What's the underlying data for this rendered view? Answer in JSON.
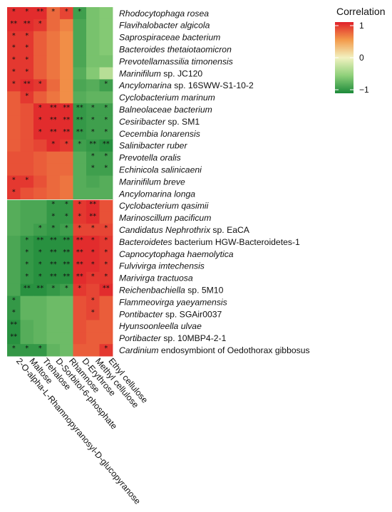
{
  "chart_data": {
    "type": "heatmap",
    "legend_title": "Correlation",
    "legend_ticks": [
      "1",
      "0",
      "−1"
    ],
    "legend_values": [
      1,
      0,
      -1
    ],
    "color_scale": [
      "#1d8a3a",
      "#8fd07a",
      "#f2f2c0",
      "#f39a4a",
      "#e0202a"
    ],
    "rows": [
      {
        "italic": "Rhodocytophaga rosea",
        "rest": ""
      },
      {
        "italic": "Flavihalobacter algicola",
        "rest": ""
      },
      {
        "italic": "Saprospiraceae bacterium",
        "rest": ""
      },
      {
        "italic": "Bacteroides thetaiotaomicron",
        "rest": ""
      },
      {
        "italic": "Prevotellamassilia timonensis",
        "rest": ""
      },
      {
        "italic": "Marinifilum",
        "rest": " sp. JC120"
      },
      {
        "italic": "Ancylomarina",
        "rest": " sp. 16SWW-S1-10-2"
      },
      {
        "italic": "Cyclobacterium marinum",
        "rest": ""
      },
      {
        "italic": "Balneolaceae bacterium",
        "rest": ""
      },
      {
        "italic": "Cesiribacter",
        "rest": " sp. SM1"
      },
      {
        "italic": "Cecembia lonarensis",
        "rest": ""
      },
      {
        "italic": "Salinibacter ruber",
        "rest": ""
      },
      {
        "italic": "Prevotella oralis",
        "rest": ""
      },
      {
        "italic": "Echinicola salinicaeni",
        "rest": ""
      },
      {
        "italic": "Marinifilum breve",
        "rest": ""
      },
      {
        "italic": "Ancylomarina longa",
        "rest": ""
      },
      {
        "italic": "Cyclobacterium qasimii",
        "rest": ""
      },
      {
        "italic": "Marinoscillum pacificum",
        "rest": ""
      },
      {
        "italic": "Candidatus Nephrothrix",
        "rest": " sp. EaCA"
      },
      {
        "italic": "Bacteroidetes",
        "rest": " bacterium HGW-Bacteroidetes-1"
      },
      {
        "italic": "Capnocytophaga haemolytica",
        "rest": ""
      },
      {
        "italic": "Fulvivirga imtechensis",
        "rest": ""
      },
      {
        "italic": "Marivirga tractuosa",
        "rest": ""
      },
      {
        "italic": "Reichenbachiella",
        "rest": " sp. 5M10"
      },
      {
        "italic": "Flammeovirga yaeyamensis",
        "rest": ""
      },
      {
        "italic": "Pontibacter",
        "rest": " sp. SGAir0037"
      },
      {
        "italic": "Hyunsoonleella ulvae",
        "rest": ""
      },
      {
        "italic": "Portibacter",
        "rest": " sp. 10MBP4-2-1"
      },
      {
        "italic": "Cardinium",
        "rest": " endosymbiont of Oedothorax gibbosus"
      }
    ],
    "columns": [
      "2-O-alpha-L-Rhamnopyranosyl-D-glucopyranose",
      "Maltose",
      "Trehalose",
      "D-Sorbitol-6-phosphate",
      "Rhamnose",
      "D-Erythrose",
      "Methyl cellulose",
      "Ethyl cellulose"
    ],
    "values": [
      [
        0.95,
        0.95,
        0.95,
        0.7,
        0.85,
        -0.85,
        -0.6,
        -0.55
      ],
      [
        0.95,
        0.95,
        0.9,
        0.7,
        0.6,
        -0.8,
        -0.6,
        -0.55
      ],
      [
        0.9,
        0.9,
        0.75,
        0.65,
        0.55,
        -0.8,
        -0.6,
        -0.55
      ],
      [
        0.9,
        0.9,
        0.75,
        0.65,
        0.55,
        -0.8,
        -0.6,
        -0.55
      ],
      [
        0.9,
        0.9,
        0.75,
        0.65,
        0.55,
        -0.8,
        -0.6,
        -0.6
      ],
      [
        0.9,
        0.9,
        0.75,
        0.65,
        0.55,
        -0.75,
        -0.55,
        -0.3
      ],
      [
        0.9,
        0.95,
        0.9,
        0.7,
        0.55,
        -0.8,
        -0.75,
        -0.85
      ],
      [
        0.75,
        0.9,
        0.75,
        0.65,
        0.55,
        -0.75,
        -0.7,
        -0.7
      ],
      [
        0.75,
        0.8,
        0.95,
        0.95,
        0.95,
        -0.9,
        -0.85,
        -0.85
      ],
      [
        0.75,
        0.8,
        0.95,
        0.95,
        0.95,
        -0.9,
        -0.85,
        -0.85
      ],
      [
        0.75,
        0.8,
        0.95,
        0.95,
        0.95,
        -0.9,
        -0.85,
        -0.85
      ],
      [
        0.75,
        0.8,
        0.85,
        0.95,
        0.9,
        -0.85,
        -0.9,
        -0.95
      ],
      [
        0.8,
        0.8,
        0.75,
        0.7,
        0.7,
        -0.75,
        -0.85,
        -0.85
      ],
      [
        0.8,
        0.8,
        0.75,
        0.7,
        0.7,
        -0.75,
        -0.85,
        -0.85
      ],
      [
        0.9,
        0.9,
        0.8,
        0.7,
        0.65,
        -0.75,
        -0.8,
        -0.75
      ],
      [
        0.9,
        0.8,
        0.75,
        0.7,
        0.65,
        -0.75,
        -0.75,
        -0.75
      ],
      [
        -0.75,
        -0.8,
        -0.8,
        -0.9,
        -0.9,
        0.9,
        0.95,
        0.8
      ],
      [
        -0.75,
        -0.8,
        -0.8,
        -0.9,
        -0.9,
        0.9,
        0.95,
        0.8
      ],
      [
        -0.75,
        -0.8,
        -0.85,
        -0.9,
        -0.85,
        0.85,
        0.85,
        0.85
      ],
      [
        -0.8,
        -0.9,
        -0.95,
        -0.95,
        -0.95,
        0.95,
        0.95,
        0.9
      ],
      [
        -0.8,
        -0.9,
        -0.95,
        -0.95,
        -0.95,
        0.95,
        0.95,
        0.9
      ],
      [
        -0.8,
        -0.9,
        -0.95,
        -0.95,
        -0.95,
        0.95,
        0.95,
        0.9
      ],
      [
        -0.8,
        -0.9,
        -0.95,
        -0.95,
        -0.95,
        0.95,
        0.9,
        0.9
      ],
      [
        -0.8,
        -0.95,
        -0.95,
        -0.9,
        -0.85,
        0.9,
        0.85,
        0.95
      ],
      [
        -0.9,
        -0.7,
        -0.7,
        -0.65,
        -0.65,
        0.8,
        0.85,
        0.75
      ],
      [
        -0.9,
        -0.7,
        -0.7,
        -0.65,
        -0.65,
        0.8,
        0.85,
        0.75
      ],
      [
        -0.95,
        -0.75,
        -0.7,
        -0.65,
        -0.65,
        0.8,
        0.75,
        0.75
      ],
      [
        -0.95,
        -0.75,
        -0.7,
        -0.65,
        -0.65,
        0.8,
        0.75,
        0.75
      ],
      [
        -0.9,
        -0.9,
        -0.9,
        -0.7,
        -0.65,
        0.75,
        0.75,
        0.9
      ]
    ],
    "significance": [
      [
        "*",
        "*",
        "**",
        "*",
        "*",
        "*",
        "",
        ""
      ],
      [
        "**",
        "**",
        "*",
        "",
        "",
        "",
        "",
        ""
      ],
      [
        "*",
        "*",
        "",
        "",
        "",
        "",
        "",
        ""
      ],
      [
        "*",
        "*",
        "",
        "",
        "",
        "",
        "",
        ""
      ],
      [
        "*",
        "*",
        "",
        "",
        "",
        "",
        "",
        ""
      ],
      [
        "*",
        "*",
        "",
        "",
        "",
        "",
        "",
        ""
      ],
      [
        "*",
        "**",
        "*",
        "",
        "",
        "",
        "",
        "*"
      ],
      [
        "",
        "*",
        "",
        "",
        "",
        "",
        "",
        ""
      ],
      [
        "",
        "",
        "*",
        "**",
        "**",
        "**",
        "*",
        "*"
      ],
      [
        "",
        "",
        "*",
        "**",
        "**",
        "**",
        "*",
        "*"
      ],
      [
        "",
        "",
        "*",
        "**",
        "**",
        "**",
        "*",
        "*"
      ],
      [
        "",
        "",
        "",
        "*",
        "*",
        "*",
        "**",
        "**"
      ],
      [
        "",
        "",
        "",
        "",
        "",
        "",
        "*",
        "*"
      ],
      [
        "",
        "",
        "",
        "",
        "",
        "",
        "*",
        "*"
      ],
      [
        "*",
        "*",
        "",
        "",
        "",
        "",
        "",
        ""
      ],
      [
        "*",
        "",
        "",
        "",
        "",
        "",
        "",
        ""
      ],
      [
        "",
        "",
        "",
        "*",
        "*",
        "*",
        "**",
        ""
      ],
      [
        "",
        "",
        "",
        "*",
        "*",
        "*",
        "**",
        ""
      ],
      [
        "",
        "",
        "*",
        "*",
        "*",
        "*",
        "*",
        "*"
      ],
      [
        "",
        "*",
        "**",
        "**",
        "**",
        "**",
        "*",
        "*"
      ],
      [
        "",
        "*",
        "*",
        "**",
        "**",
        "**",
        "*",
        "*"
      ],
      [
        "",
        "*",
        "*",
        "**",
        "**",
        "**",
        "*",
        "*"
      ],
      [
        "",
        "*",
        "*",
        "**",
        "**",
        "**",
        "*",
        "*"
      ],
      [
        "",
        "**",
        "**",
        "*",
        "*",
        "*",
        "",
        "**"
      ],
      [
        "*",
        "",
        "",
        "",
        "",
        "",
        "*",
        ""
      ],
      [
        "*",
        "",
        "",
        "",
        "",
        "",
        "*",
        ""
      ],
      [
        "**",
        "",
        "",
        "",
        "",
        "",
        "",
        ""
      ],
      [
        "**",
        "",
        "",
        "",
        "",
        "",
        "",
        ""
      ],
      [
        "*",
        "*",
        "*",
        "",
        "",
        "",
        "",
        "*"
      ]
    ]
  }
}
